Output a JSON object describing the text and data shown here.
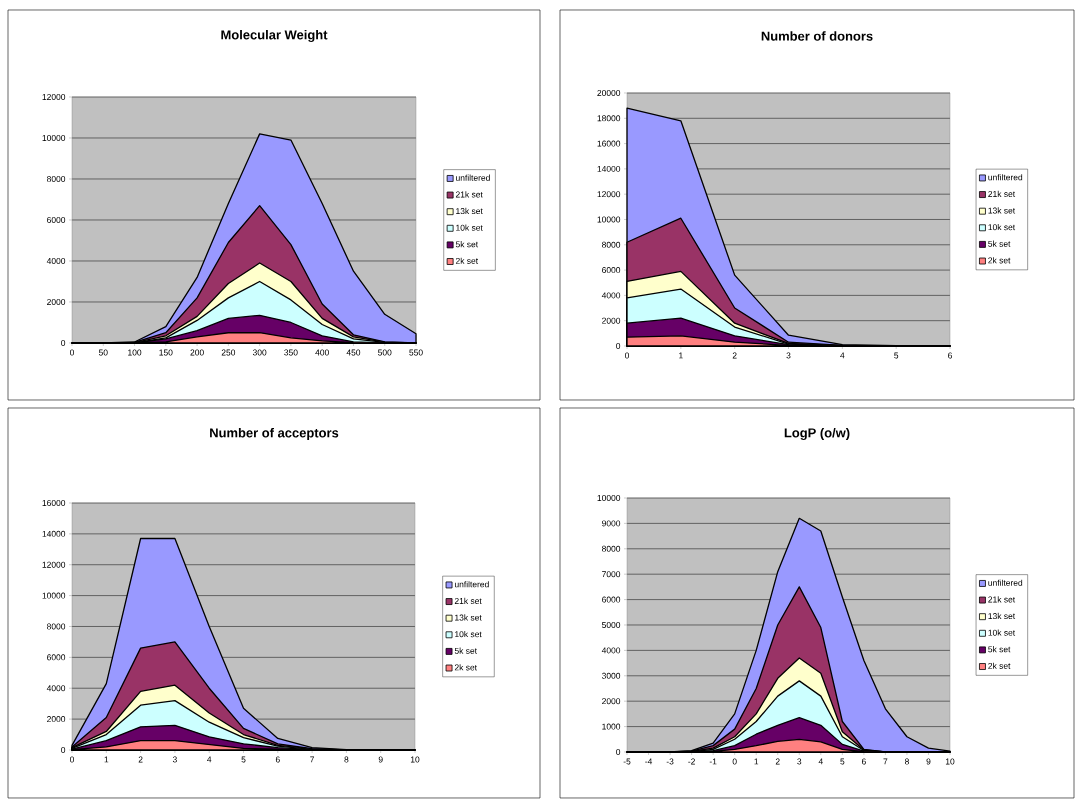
{
  "chart_data": [
    {
      "type": "area",
      "title": "Molecular Weight",
      "x": [
        0,
        50,
        100,
        150,
        200,
        250,
        300,
        350,
        400,
        450,
        500,
        550
      ],
      "xlim": [
        0,
        550
      ],
      "xticks": [
        0,
        50,
        100,
        150,
        200,
        250,
        300,
        350,
        400,
        450,
        500,
        550
      ],
      "ylim": [
        0,
        12000
      ],
      "yticks": [
        0,
        2000,
        4000,
        6000,
        8000,
        10000,
        12000
      ],
      "grid": "y",
      "legend": "right",
      "series": [
        {
          "name": "unfiltered",
          "color": "#9999ff",
          "values": [
            0,
            0,
            50,
            800,
            3200,
            6800,
            10200,
            9900,
            6800,
            3500,
            1400,
            450
          ]
        },
        {
          "name": "21k set",
          "color": "#993366",
          "values": [
            0,
            0,
            30,
            500,
            2200,
            4900,
            6700,
            4800,
            1900,
            400,
            50,
            0
          ]
        },
        {
          "name": "13k set",
          "color": "#ffffcc",
          "values": [
            0,
            0,
            20,
            350,
            1300,
            2900,
            3900,
            3000,
            1200,
            300,
            40,
            0
          ]
        },
        {
          "name": "10k set",
          "color": "#ccffff",
          "values": [
            0,
            0,
            10,
            250,
            1100,
            2200,
            3000,
            2100,
            900,
            200,
            30,
            0
          ]
        },
        {
          "name": "5k set",
          "color": "#660066",
          "values": [
            0,
            0,
            0,
            200,
            600,
            1200,
            1350,
            1000,
            350,
            50,
            10,
            0
          ]
        },
        {
          "name": "2k set",
          "color": "#ff8080",
          "values": [
            0,
            0,
            0,
            50,
            300,
            500,
            500,
            250,
            100,
            20,
            0,
            0
          ]
        }
      ]
    },
    {
      "type": "area",
      "title": "Number of donors",
      "x": [
        0,
        1,
        2,
        3,
        4,
        5,
        6
      ],
      "xlim": [
        0,
        6
      ],
      "xticks": [
        0,
        1,
        2,
        3,
        4,
        5,
        6
      ],
      "ylim": [
        0,
        20000
      ],
      "yticks": [
        0,
        2000,
        4000,
        6000,
        8000,
        10000,
        12000,
        14000,
        16000,
        18000,
        20000
      ],
      "grid": "y",
      "legend": "right",
      "series": [
        {
          "name": "unfiltered",
          "color": "#9999ff",
          "values": [
            18800,
            17800,
            5600,
            850,
            100,
            20,
            0
          ]
        },
        {
          "name": "21k set",
          "color": "#993366",
          "values": [
            8200,
            10100,
            3000,
            300,
            50,
            0,
            0
          ]
        },
        {
          "name": "13k set",
          "color": "#ffffcc",
          "values": [
            5100,
            5900,
            1800,
            200,
            30,
            0,
            0
          ]
        },
        {
          "name": "10k set",
          "color": "#ccffff",
          "values": [
            3800,
            4500,
            1500,
            150,
            20,
            0,
            0
          ]
        },
        {
          "name": "5k set",
          "color": "#660066",
          "values": [
            1800,
            2200,
            800,
            100,
            10,
            0,
            0
          ]
        },
        {
          "name": "2k set",
          "color": "#ff8080",
          "values": [
            700,
            800,
            300,
            50,
            0,
            0,
            0
          ]
        }
      ]
    },
    {
      "type": "area",
      "title": "Number of acceptors",
      "x": [
        0,
        1,
        2,
        3,
        4,
        5,
        6,
        7,
        8,
        9,
        10
      ],
      "xlim": [
        0,
        10
      ],
      "xticks": [
        0,
        1,
        2,
        3,
        4,
        5,
        6,
        7,
        8,
        9,
        10
      ],
      "ylim": [
        0,
        16000
      ],
      "yticks": [
        0,
        2000,
        4000,
        6000,
        8000,
        10000,
        12000,
        14000,
        16000
      ],
      "grid": "y",
      "legend": "right",
      "series": [
        {
          "name": "unfiltered",
          "color": "#9999ff",
          "values": [
            300,
            4300,
            13700,
            13700,
            8000,
            2700,
            750,
            150,
            20,
            0,
            0
          ]
        },
        {
          "name": "21k set",
          "color": "#993366",
          "values": [
            200,
            2100,
            6600,
            7000,
            4000,
            1400,
            400,
            80,
            0,
            0,
            0
          ]
        },
        {
          "name": "13k set",
          "color": "#ffffcc",
          "values": [
            150,
            1200,
            3800,
            4200,
            2400,
            1000,
            300,
            50,
            0,
            0,
            0
          ]
        },
        {
          "name": "10k set",
          "color": "#ccffff",
          "values": [
            100,
            1000,
            2900,
            3200,
            1800,
            800,
            250,
            40,
            0,
            0,
            0
          ]
        },
        {
          "name": "5k set",
          "color": "#660066",
          "values": [
            50,
            600,
            1500,
            1600,
            850,
            400,
            150,
            20,
            0,
            0,
            0
          ]
        },
        {
          "name": "2k set",
          "color": "#ff8080",
          "values": [
            20,
            200,
            600,
            600,
            350,
            100,
            50,
            0,
            0,
            0,
            0
          ]
        }
      ]
    },
    {
      "type": "area",
      "title": "LogP (o/w)",
      "x": [
        -5,
        -4,
        -3,
        -2,
        -1,
        0,
        1,
        2,
        3,
        4,
        5,
        6,
        7,
        8,
        9,
        10
      ],
      "xlim": [
        -5,
        10
      ],
      "xticks": [
        -5,
        -4,
        -3,
        -2,
        -1,
        0,
        1,
        2,
        3,
        4,
        5,
        6,
        7,
        8,
        9,
        10
      ],
      "ylim": [
        0,
        10000
      ],
      "yticks": [
        0,
        1000,
        2000,
        3000,
        4000,
        5000,
        6000,
        7000,
        8000,
        9000,
        10000
      ],
      "grid": "y",
      "legend": "right",
      "series": [
        {
          "name": "unfiltered",
          "color": "#9999ff",
          "values": [
            0,
            0,
            0,
            50,
            350,
            1500,
            4000,
            7100,
            9200,
            8700,
            6100,
            3600,
            1700,
            600,
            150,
            30
          ]
        },
        {
          "name": "21k set",
          "color": "#993366",
          "values": [
            0,
            0,
            0,
            30,
            250,
            900,
            2500,
            5000,
            6500,
            4900,
            1200,
            100,
            0,
            0,
            0,
            0
          ]
        },
        {
          "name": "13k set",
          "color": "#ffffcc",
          "values": [
            0,
            0,
            0,
            20,
            150,
            600,
            1500,
            2900,
            3700,
            3100,
            800,
            80,
            0,
            0,
            0,
            0
          ]
        },
        {
          "name": "10k set",
          "color": "#ccffff",
          "values": [
            0,
            0,
            0,
            10,
            100,
            500,
            1200,
            2200,
            2800,
            2200,
            600,
            60,
            0,
            0,
            0,
            0
          ]
        },
        {
          "name": "5k set",
          "color": "#660066",
          "values": [
            0,
            0,
            0,
            0,
            50,
            250,
            700,
            1050,
            1350,
            1050,
            300,
            30,
            0,
            0,
            0,
            0
          ]
        },
        {
          "name": "2k set",
          "color": "#ff8080",
          "values": [
            0,
            0,
            0,
            0,
            20,
            100,
            250,
            420,
            500,
            400,
            100,
            10,
            0,
            0,
            0,
            0
          ]
        }
      ]
    }
  ]
}
